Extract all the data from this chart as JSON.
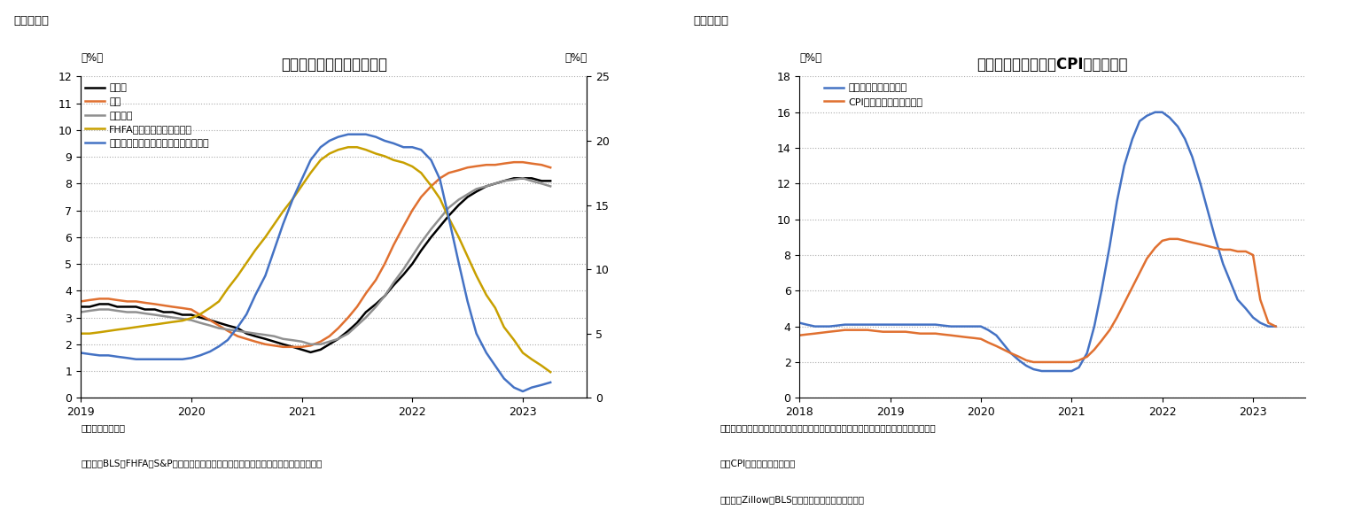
{
  "fig8": {
    "title": "住居費および住宅価格指数",
    "label_pct_left": "（%）",
    "label_pct_right": "（%）",
    "note": "（注）前年同月比",
    "source": "（資料）BLS、FHFA、S&Pダウジョーンズ・インデックスよりニッセイ基礎研究所作成",
    "fig_label": "（図表８）",
    "ylim_left": [
      0,
      12
    ],
    "ylim_right": [
      0,
      25
    ],
    "yticks_left": [
      0,
      1,
      2,
      3,
      4,
      5,
      6,
      7,
      8,
      9,
      10,
      11,
      12
    ],
    "yticks_right": [
      0,
      5,
      10,
      15,
      20,
      25
    ],
    "xlim": [
      2019.0,
      2023.58
    ],
    "xticks": [
      2019,
      2020,
      2021,
      2022,
      2023
    ],
    "xticklabels": [
      "2019",
      "2020",
      "2021",
      "2022",
      "2023"
    ],
    "series": {
      "jukyohi": {
        "label": "住居費",
        "color": "#000000",
        "linewidth": 1.8,
        "axis": "left",
        "x": [
          2019.0,
          2019.08,
          2019.17,
          2019.25,
          2019.33,
          2019.42,
          2019.5,
          2019.58,
          2019.67,
          2019.75,
          2019.83,
          2019.92,
          2020.0,
          2020.08,
          2020.17,
          2020.25,
          2020.33,
          2020.42,
          2020.5,
          2020.58,
          2020.67,
          2020.75,
          2020.83,
          2020.92,
          2021.0,
          2021.08,
          2021.17,
          2021.25,
          2021.33,
          2021.42,
          2021.5,
          2021.58,
          2021.67,
          2021.75,
          2021.83,
          2021.92,
          2022.0,
          2022.08,
          2022.17,
          2022.25,
          2022.33,
          2022.42,
          2022.5,
          2022.58,
          2022.67,
          2022.75,
          2022.83,
          2022.92,
          2023.0,
          2023.08,
          2023.17,
          2023.25
        ],
        "y": [
          3.4,
          3.4,
          3.5,
          3.5,
          3.4,
          3.4,
          3.4,
          3.3,
          3.3,
          3.2,
          3.2,
          3.1,
          3.1,
          3.0,
          2.9,
          2.8,
          2.7,
          2.6,
          2.4,
          2.3,
          2.2,
          2.1,
          2.0,
          1.9,
          1.8,
          1.7,
          1.8,
          2.0,
          2.2,
          2.5,
          2.8,
          3.2,
          3.5,
          3.8,
          4.2,
          4.6,
          5.0,
          5.5,
          6.0,
          6.4,
          6.8,
          7.2,
          7.5,
          7.7,
          7.9,
          8.0,
          8.1,
          8.2,
          8.2,
          8.2,
          8.1,
          8.1
        ]
      },
      "yachin": {
        "label": "家賃",
        "color": "#e07030",
        "linewidth": 1.8,
        "axis": "left",
        "x": [
          2019.0,
          2019.08,
          2019.17,
          2019.25,
          2019.33,
          2019.42,
          2019.5,
          2019.58,
          2019.67,
          2019.75,
          2019.83,
          2019.92,
          2020.0,
          2020.08,
          2020.17,
          2020.25,
          2020.33,
          2020.42,
          2020.5,
          2020.58,
          2020.67,
          2020.75,
          2020.83,
          2020.92,
          2021.0,
          2021.08,
          2021.17,
          2021.25,
          2021.33,
          2021.42,
          2021.5,
          2021.58,
          2021.67,
          2021.75,
          2021.83,
          2021.92,
          2022.0,
          2022.08,
          2022.17,
          2022.25,
          2022.33,
          2022.42,
          2022.5,
          2022.58,
          2022.67,
          2022.75,
          2022.83,
          2022.92,
          2023.0,
          2023.08,
          2023.17,
          2023.25
        ],
        "y": [
          3.6,
          3.65,
          3.7,
          3.7,
          3.65,
          3.6,
          3.6,
          3.55,
          3.5,
          3.45,
          3.4,
          3.35,
          3.3,
          3.1,
          2.9,
          2.7,
          2.5,
          2.3,
          2.2,
          2.1,
          2.0,
          1.95,
          1.9,
          1.9,
          1.9,
          1.95,
          2.1,
          2.3,
          2.6,
          3.0,
          3.4,
          3.9,
          4.4,
          5.0,
          5.7,
          6.4,
          7.0,
          7.5,
          7.9,
          8.2,
          8.4,
          8.5,
          8.6,
          8.65,
          8.7,
          8.7,
          8.75,
          8.8,
          8.8,
          8.75,
          8.7,
          8.6
        ]
      },
      "kizoku": {
        "label": "帰属家賃",
        "color": "#909090",
        "linewidth": 1.8,
        "axis": "left",
        "x": [
          2019.0,
          2019.08,
          2019.17,
          2019.25,
          2019.33,
          2019.42,
          2019.5,
          2019.58,
          2019.67,
          2019.75,
          2019.83,
          2019.92,
          2020.0,
          2020.08,
          2020.17,
          2020.25,
          2020.33,
          2020.42,
          2020.5,
          2020.58,
          2020.67,
          2020.75,
          2020.83,
          2020.92,
          2021.0,
          2021.08,
          2021.17,
          2021.25,
          2021.33,
          2021.42,
          2021.5,
          2021.58,
          2021.67,
          2021.75,
          2021.83,
          2021.92,
          2022.0,
          2022.08,
          2022.17,
          2022.25,
          2022.33,
          2022.42,
          2022.5,
          2022.58,
          2022.67,
          2022.75,
          2022.83,
          2022.92,
          2023.0,
          2023.08,
          2023.17,
          2023.25
        ],
        "y": [
          3.2,
          3.25,
          3.3,
          3.3,
          3.25,
          3.2,
          3.2,
          3.15,
          3.1,
          3.05,
          3.0,
          2.95,
          2.9,
          2.8,
          2.7,
          2.6,
          2.55,
          2.5,
          2.45,
          2.4,
          2.35,
          2.3,
          2.2,
          2.15,
          2.1,
          2.0,
          2.0,
          2.1,
          2.2,
          2.4,
          2.7,
          3.0,
          3.4,
          3.8,
          4.3,
          4.8,
          5.3,
          5.8,
          6.3,
          6.7,
          7.1,
          7.4,
          7.6,
          7.8,
          7.9,
          8.0,
          8.1,
          8.15,
          8.2,
          8.1,
          8.0,
          7.9
        ]
      },
      "fhfa": {
        "label": "FHFA住宅価格指数（右軸）",
        "color": "#c8a000",
        "linewidth": 1.8,
        "axis": "right",
        "x": [
          2019.0,
          2019.08,
          2019.17,
          2019.25,
          2019.33,
          2019.42,
          2019.5,
          2019.58,
          2019.67,
          2019.75,
          2019.83,
          2019.92,
          2020.0,
          2020.08,
          2020.17,
          2020.25,
          2020.33,
          2020.42,
          2020.5,
          2020.58,
          2020.67,
          2020.75,
          2020.83,
          2020.92,
          2021.0,
          2021.08,
          2021.17,
          2021.25,
          2021.33,
          2021.42,
          2021.5,
          2021.58,
          2021.67,
          2021.75,
          2021.83,
          2021.92,
          2022.0,
          2022.08,
          2022.17,
          2022.25,
          2022.33,
          2022.42,
          2022.5,
          2022.58,
          2022.67,
          2022.75,
          2022.83,
          2022.92,
          2023.0,
          2023.08,
          2023.17,
          2023.25
        ],
        "y": [
          5.0,
          5.0,
          5.1,
          5.2,
          5.3,
          5.4,
          5.5,
          5.6,
          5.7,
          5.8,
          5.9,
          6.0,
          6.2,
          6.5,
          7.0,
          7.5,
          8.5,
          9.5,
          10.5,
          11.5,
          12.5,
          13.5,
          14.5,
          15.5,
          16.5,
          17.5,
          18.5,
          19.0,
          19.3,
          19.5,
          19.5,
          19.3,
          19.0,
          18.8,
          18.5,
          18.3,
          18.0,
          17.5,
          16.5,
          15.5,
          14.0,
          12.5,
          11.0,
          9.5,
          8.0,
          7.0,
          5.5,
          4.5,
          3.5,
          3.0,
          2.5,
          2.0
        ]
      },
      "case_shiller": {
        "label": "ケース・シラー住宅価格指数（右軸）",
        "color": "#4472c4",
        "linewidth": 1.8,
        "axis": "right",
        "x": [
          2019.0,
          2019.08,
          2019.17,
          2019.25,
          2019.33,
          2019.42,
          2019.5,
          2019.58,
          2019.67,
          2019.75,
          2019.83,
          2019.92,
          2020.0,
          2020.08,
          2020.17,
          2020.25,
          2020.33,
          2020.42,
          2020.5,
          2020.58,
          2020.67,
          2020.75,
          2020.83,
          2020.92,
          2021.0,
          2021.08,
          2021.17,
          2021.25,
          2021.33,
          2021.42,
          2021.5,
          2021.58,
          2021.67,
          2021.75,
          2021.83,
          2021.92,
          2022.0,
          2022.08,
          2022.17,
          2022.25,
          2022.33,
          2022.42,
          2022.5,
          2022.58,
          2022.67,
          2022.75,
          2022.83,
          2022.92,
          2023.0,
          2023.08,
          2023.17,
          2023.25
        ],
        "y": [
          3.5,
          3.4,
          3.3,
          3.3,
          3.2,
          3.1,
          3.0,
          3.0,
          3.0,
          3.0,
          3.0,
          3.0,
          3.1,
          3.3,
          3.6,
          4.0,
          4.5,
          5.5,
          6.5,
          8.0,
          9.5,
          11.5,
          13.5,
          15.5,
          17.0,
          18.5,
          19.5,
          20.0,
          20.3,
          20.5,
          20.5,
          20.5,
          20.3,
          20.0,
          19.8,
          19.5,
          19.5,
          19.3,
          18.5,
          17.0,
          14.0,
          10.5,
          7.5,
          5.0,
          3.5,
          2.5,
          1.5,
          0.8,
          0.5,
          0.8,
          1.0,
          1.2
        ]
      }
    }
  },
  "fig9": {
    "title": "観察家賃指数およびCPIの家賃指数",
    "label_pct_left": "（%）",
    "note1": "（注）前年同月比。観測家賃指数は同じ賃貸ユニットの賃料を経時的に計算したもの。",
    "note2": "　　CPI家賃指数は１年遅行",
    "source": "（資料）Zillow、BLSよりニッセイ基礎研究所作成",
    "fig_label": "（図表９）",
    "ylim": [
      0,
      18
    ],
    "yticks": [
      0,
      2,
      4,
      6,
      8,
      10,
      12,
      14,
      16,
      18
    ],
    "xlim": [
      2018.0,
      2023.58
    ],
    "xticks": [
      2018,
      2019,
      2020,
      2021,
      2022,
      2023
    ],
    "xticklabels": [
      "2018",
      "2019",
      "2020",
      "2021",
      "2022",
      "2023"
    ],
    "series": {
      "observed": {
        "label": "観測家賃指数（全米）",
        "color": "#4472c4",
        "linewidth": 1.8,
        "x": [
          2018.0,
          2018.08,
          2018.17,
          2018.25,
          2018.33,
          2018.42,
          2018.5,
          2018.58,
          2018.67,
          2018.75,
          2018.83,
          2018.92,
          2019.0,
          2019.08,
          2019.17,
          2019.25,
          2019.33,
          2019.42,
          2019.5,
          2019.58,
          2019.67,
          2019.75,
          2019.83,
          2019.92,
          2020.0,
          2020.08,
          2020.17,
          2020.25,
          2020.33,
          2020.42,
          2020.5,
          2020.58,
          2020.67,
          2020.75,
          2020.83,
          2020.92,
          2021.0,
          2021.08,
          2021.17,
          2021.25,
          2021.33,
          2021.42,
          2021.5,
          2021.58,
          2021.67,
          2021.75,
          2021.83,
          2021.92,
          2022.0,
          2022.08,
          2022.17,
          2022.25,
          2022.33,
          2022.42,
          2022.5,
          2022.58,
          2022.67,
          2022.75,
          2022.83,
          2022.92,
          2023.0,
          2023.08,
          2023.17,
          2023.25
        ],
        "y": [
          4.2,
          4.1,
          4.0,
          4.0,
          4.0,
          4.05,
          4.1,
          4.1,
          4.1,
          4.1,
          4.1,
          4.1,
          4.1,
          4.1,
          4.1,
          4.1,
          4.1,
          4.1,
          4.1,
          4.05,
          4.0,
          4.0,
          4.0,
          4.0,
          4.0,
          3.8,
          3.5,
          3.0,
          2.5,
          2.1,
          1.8,
          1.6,
          1.5,
          1.5,
          1.5,
          1.5,
          1.5,
          1.7,
          2.5,
          4.0,
          6.0,
          8.5,
          11.0,
          13.0,
          14.5,
          15.5,
          15.8,
          16.0,
          16.0,
          15.7,
          15.2,
          14.5,
          13.5,
          12.0,
          10.5,
          9.0,
          7.5,
          6.5,
          5.5,
          5.0,
          4.5,
          4.2,
          4.0,
          4.0
        ]
      },
      "cpi_rent": {
        "label": "CPI家賃指数（１年ラグ）",
        "color": "#e07030",
        "linewidth": 1.8,
        "x": [
          2018.0,
          2018.08,
          2018.17,
          2018.25,
          2018.33,
          2018.42,
          2018.5,
          2018.58,
          2018.67,
          2018.75,
          2018.83,
          2018.92,
          2019.0,
          2019.08,
          2019.17,
          2019.25,
          2019.33,
          2019.42,
          2019.5,
          2019.58,
          2019.67,
          2019.75,
          2019.83,
          2019.92,
          2020.0,
          2020.08,
          2020.17,
          2020.25,
          2020.33,
          2020.42,
          2020.5,
          2020.58,
          2020.67,
          2020.75,
          2020.83,
          2020.92,
          2021.0,
          2021.08,
          2021.17,
          2021.25,
          2021.33,
          2021.42,
          2021.5,
          2021.58,
          2021.67,
          2021.75,
          2021.83,
          2021.92,
          2022.0,
          2022.08,
          2022.17,
          2022.25,
          2022.33,
          2022.42,
          2022.5,
          2022.58,
          2022.67,
          2022.75,
          2022.83,
          2022.92,
          2023.0,
          2023.08,
          2023.17,
          2023.25
        ],
        "y": [
          3.5,
          3.55,
          3.6,
          3.65,
          3.7,
          3.75,
          3.8,
          3.8,
          3.8,
          3.8,
          3.75,
          3.7,
          3.7,
          3.7,
          3.7,
          3.65,
          3.6,
          3.6,
          3.6,
          3.55,
          3.5,
          3.45,
          3.4,
          3.35,
          3.3,
          3.1,
          2.9,
          2.7,
          2.5,
          2.3,
          2.1,
          2.0,
          2.0,
          2.0,
          2.0,
          2.0,
          2.0,
          2.1,
          2.3,
          2.7,
          3.2,
          3.8,
          4.5,
          5.3,
          6.2,
          7.0,
          7.8,
          8.4,
          8.8,
          8.9,
          8.9,
          8.8,
          8.7,
          8.6,
          8.5,
          8.4,
          8.3,
          8.3,
          8.2,
          8.2,
          8.0,
          5.5,
          4.2,
          4.0
        ]
      }
    }
  }
}
